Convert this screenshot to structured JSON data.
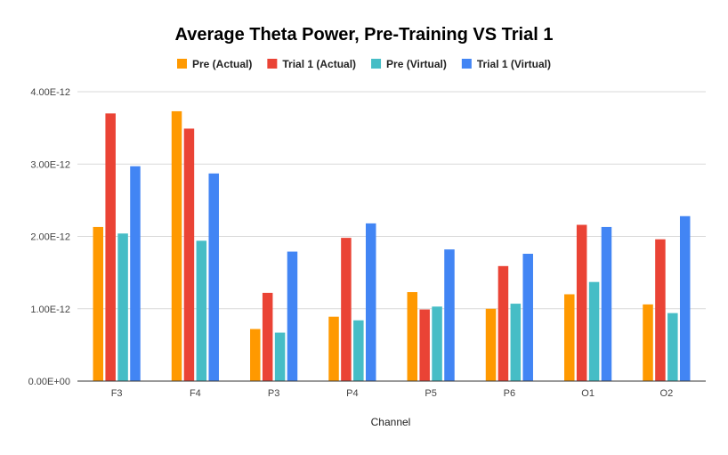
{
  "chart_data": {
    "type": "bar",
    "title": "Average Theta Power, Pre-Training VS Trial 1",
    "xlabel": "Channel",
    "ylabel": "",
    "categories": [
      "F3",
      "F4",
      "P3",
      "P4",
      "P5",
      "P6",
      "O1",
      "O2"
    ],
    "ylim": [
      0,
      4e-12
    ],
    "yticks": [
      {
        "value": 0,
        "label": "0.00E+00"
      },
      {
        "value": 1e-12,
        "label": "1.00E-12"
      },
      {
        "value": 2e-12,
        "label": "2.00E-12"
      },
      {
        "value": 3e-12,
        "label": "3.00E-12"
      },
      {
        "value": 4e-12,
        "label": "4.00E-12"
      }
    ],
    "grid": true,
    "legend_position": "top",
    "series": [
      {
        "name": "Pre (Actual)",
        "color": "#ff9900",
        "values": [
          2.13e-12,
          3.73e-12,
          7.2e-13,
          8.9e-13,
          1.23e-12,
          1e-12,
          1.2e-12,
          1.06e-12
        ]
      },
      {
        "name": "Trial 1 (Actual)",
        "color": "#ea4335",
        "values": [
          3.7e-12,
          3.49e-12,
          1.22e-12,
          1.98e-12,
          9.9e-13,
          1.59e-12,
          2.16e-12,
          1.96e-12
        ]
      },
      {
        "name": "Pre (Virtual)",
        "color": "#46bdc6",
        "values": [
          2.04e-12,
          1.94e-12,
          6.7e-13,
          8.4e-13,
          1.03e-12,
          1.07e-12,
          1.37e-12,
          9.4e-13
        ]
      },
      {
        "name": "Trial 1 (Virtual)",
        "color": "#4285f4",
        "values": [
          2.97e-12,
          2.87e-12,
          1.79e-12,
          2.18e-12,
          1.82e-12,
          1.76e-12,
          2.13e-12,
          2.28e-12
        ]
      }
    ]
  }
}
